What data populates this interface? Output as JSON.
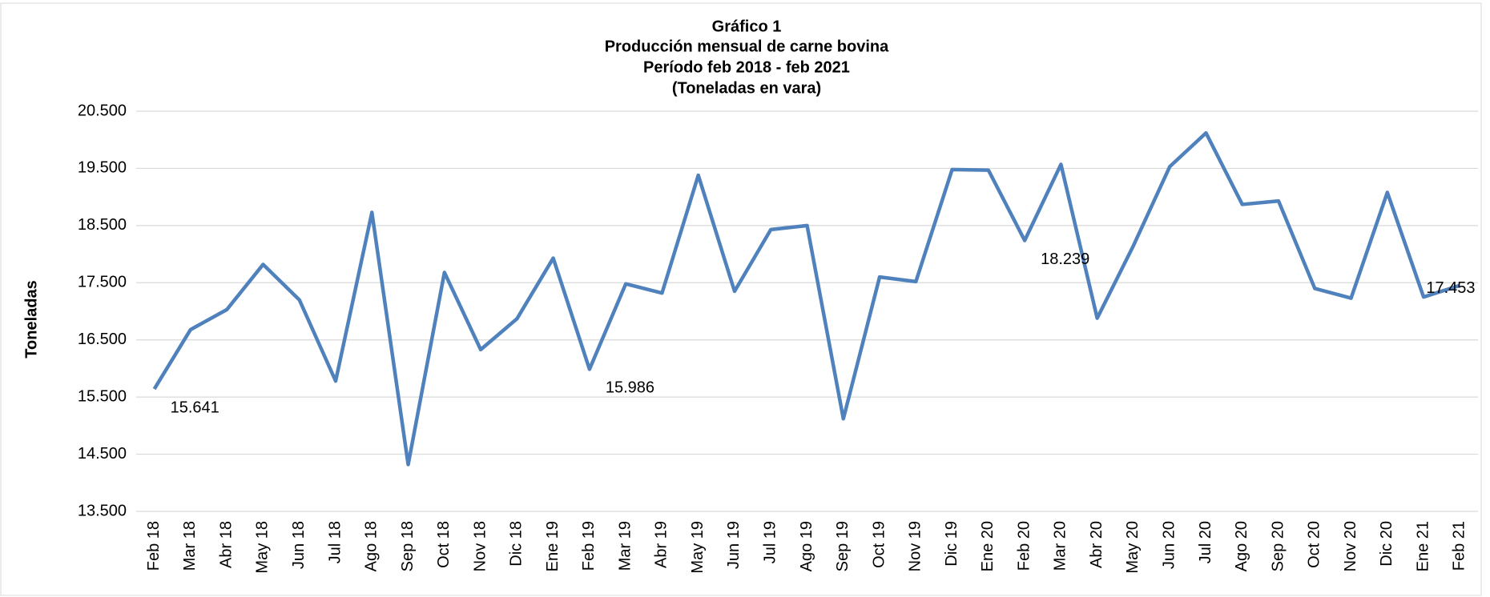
{
  "chart_data": {
    "type": "line",
    "title": "Gráfico 1",
    "subtitle": [
      "Producción mensual de carne bovina",
      "Período feb 2018 -  feb 2021",
      "(Toneladas en vara)"
    ],
    "y_label": "Toneladas",
    "categories": [
      "Feb 18",
      "Mar 18",
      "Abr 18",
      "May 18",
      "Jun 18",
      "Jul 18",
      "Ago 18",
      "Sep 18",
      "Oct 18",
      "Nov 18",
      "Dic 18",
      "Ene 19",
      "Feb 19",
      "Mar 19",
      "Abr 19",
      "May 19",
      "Jun 19",
      "Jul 19",
      "Ago 19",
      "Sep 19",
      "Oct 19",
      "Nov 19",
      "Dic 19",
      "Ene 20",
      "Feb 20",
      "Mar 20",
      "Abr 20",
      "May 20",
      "Jun 20",
      "Jul 20",
      "Ago 20",
      "Sep 20",
      "Oct 20",
      "Nov 20",
      "Dic 20",
      "Ene 21",
      "Feb 21"
    ],
    "series": [
      {
        "color": "#4f81bd",
        "values": [
          15641,
          16680,
          17030,
          17820,
          17200,
          15780,
          18730,
          14320,
          17680,
          16330,
          16870,
          17930,
          15986,
          17480,
          17320,
          19380,
          17350,
          18430,
          18500,
          15120,
          17600,
          17520,
          19480,
          19470,
          18239,
          19570,
          16880,
          18150,
          19530,
          20120,
          18870,
          18930,
          17400,
          17230,
          19080,
          17250,
          17453
        ],
        "value_labels": [
          "15.641",
          null,
          null,
          null,
          null,
          null,
          null,
          null,
          null,
          null,
          null,
          null,
          "15.986",
          null,
          null,
          null,
          null,
          null,
          null,
          null,
          null,
          null,
          null,
          null,
          "18.239",
          null,
          null,
          null,
          null,
          null,
          null,
          null,
          null,
          null,
          null,
          null,
          "17.453"
        ]
      }
    ],
    "ylim": [
      13500,
      20500
    ],
    "yticks": [
      {
        "value": 13500,
        "label": "13.500"
      },
      {
        "value": 14500,
        "label": "14.500"
      },
      {
        "value": 15500,
        "label": "15.500"
      },
      {
        "value": 16500,
        "label": "16.500"
      },
      {
        "value": 17500,
        "label": "17.500"
      },
      {
        "value": 18500,
        "label": "18.500"
      },
      {
        "value": 19500,
        "label": "19.500"
      },
      {
        "value": 20500,
        "label": "20.500"
      }
    ],
    "grid": true
  }
}
